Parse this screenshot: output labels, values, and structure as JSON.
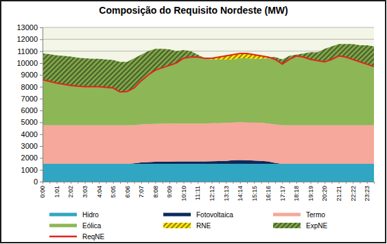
{
  "chart_data": {
    "type": "area",
    "title": "Composição do Requisito Nordeste (MW)",
    "stacked": true,
    "grid": true,
    "legend": "bottom",
    "categories": [
      "0:00",
      null,
      "1:01",
      null,
      "2:02",
      null,
      "3:03",
      null,
      "4:04",
      null,
      "5:05",
      null,
      "6:06",
      null,
      "7:07",
      null,
      "8:08",
      null,
      "9:09",
      null,
      "10:10",
      null,
      "11:11",
      null,
      "12:12",
      null,
      "13:13",
      null,
      "14:14",
      null,
      "15:15",
      null,
      "16:16",
      null,
      "17:17",
      null,
      "18:18",
      null,
      "19:19",
      null,
      "20:20",
      null,
      "21:21",
      null,
      "22:22",
      null,
      "23:23",
      null
    ],
    "ylim": [
      0,
      13000
    ],
    "yticks": [
      0,
      1000,
      2000,
      3000,
      4000,
      5000,
      6000,
      7000,
      8000,
      9000,
      10000,
      11000,
      12000,
      13000
    ],
    "series": [
      {
        "name": "Hidro",
        "type": "area",
        "color": "#31a6c3",
        "values": [
          1500,
          1500,
          1500,
          1500,
          1500,
          1500,
          1500,
          1500,
          1500,
          1500,
          1500,
          1500,
          1500,
          1500,
          1500,
          1500,
          1500,
          1500,
          1500,
          1500,
          1500,
          1500,
          1500,
          1500,
          1500,
          1500,
          1500,
          1500,
          1500,
          1500,
          1500,
          1500,
          1500,
          1500,
          1500,
          1500,
          1500,
          1500,
          1500,
          1500,
          1500,
          1500,
          1500,
          1500,
          1500,
          1500,
          1500,
          1500
        ]
      },
      {
        "name": "Fotovoltaica",
        "type": "area",
        "color": "#0d2a5a",
        "values": [
          0,
          0,
          0,
          0,
          0,
          0,
          0,
          0,
          0,
          0,
          0,
          0,
          0,
          50,
          120,
          150,
          170,
          180,
          190,
          200,
          200,
          200,
          200,
          200,
          220,
          230,
          250,
          300,
          320,
          300,
          280,
          250,
          200,
          80,
          0,
          0,
          0,
          0,
          0,
          0,
          0,
          0,
          0,
          0,
          0,
          0,
          0,
          0
        ]
      },
      {
        "name": "Termo",
        "type": "area",
        "color": "#f5a89b",
        "values": [
          3250,
          3250,
          3250,
          3250,
          3250,
          3250,
          3250,
          3250,
          3250,
          3250,
          3250,
          3250,
          3250,
          3200,
          3200,
          3200,
          3200,
          3200,
          3200,
          3200,
          3200,
          3200,
          3200,
          3200,
          3200,
          3200,
          3200,
          3200,
          3200,
          3200,
          3200,
          3200,
          3200,
          3250,
          3250,
          3250,
          3250,
          3250,
          3250,
          3250,
          3250,
          3250,
          3250,
          3250,
          3250,
          3250,
          3250,
          3250
        ]
      },
      {
        "name": "Eólica",
        "type": "area",
        "color": "#8db656",
        "values": [
          3850,
          3700,
          3550,
          3450,
          3350,
          3300,
          3250,
          3250,
          3250,
          3200,
          3150,
          2800,
          2850,
          3150,
          3680,
          4150,
          4530,
          4720,
          4910,
          5100,
          5500,
          5600,
          5600,
          5500,
          5380,
          5370,
          5350,
          5300,
          5380,
          5400,
          5370,
          5400,
          5500,
          5470,
          5150,
          5550,
          5850,
          5750,
          5550,
          5450,
          5350,
          5550,
          5850,
          5750,
          5550,
          5350,
          5150,
          4950
        ]
      },
      {
        "name": "RNE",
        "type": "area",
        "color": "#ffe600",
        "line_style": "hatched",
        "values": [
          0,
          0,
          0,
          0,
          0,
          0,
          0,
          0,
          0,
          0,
          0,
          0,
          0,
          0,
          0,
          0,
          0,
          0,
          0,
          0,
          0,
          0,
          0,
          0,
          100,
          200,
          300,
          400,
          400,
          400,
          350,
          250,
          100,
          0,
          0,
          0,
          0,
          0,
          0,
          0,
          0,
          0,
          0,
          0,
          0,
          0,
          0,
          0
        ]
      },
      {
        "name": "ExpNE",
        "type": "area",
        "color": "#7fa548",
        "line_style": "hatched",
        "values": [
          2200,
          2300,
          2350,
          2400,
          2450,
          2400,
          2400,
          2350,
          2350,
          2350,
          2350,
          2550,
          2500,
          2500,
          2200,
          2000,
          1800,
          1600,
          1350,
          1000,
          700,
          500,
          200,
          0,
          0,
          0,
          0,
          0,
          0,
          0,
          0,
          0,
          0,
          200,
          400,
          300,
          100,
          300,
          600,
          700,
          1100,
          1100,
          1000,
          1100,
          1300,
          1400,
          1600,
          1700
        ]
      },
      {
        "name": "ReqNE",
        "type": "line",
        "color": "#e3241b",
        "values": [
          8600,
          8450,
          8300,
          8200,
          8100,
          8050,
          8000,
          8000,
          8000,
          7950,
          7900,
          7550,
          7600,
          7900,
          8500,
          9000,
          9400,
          9600,
          9800,
          10000,
          10400,
          10500,
          10500,
          10400,
          10400,
          10500,
          10600,
          10700,
          10800,
          10800,
          10700,
          10600,
          10500,
          10300,
          9900,
          10300,
          10600,
          10500,
          10300,
          10200,
          10100,
          10300,
          10600,
          10500,
          10300,
          10100,
          9900,
          9700
        ]
      }
    ]
  }
}
